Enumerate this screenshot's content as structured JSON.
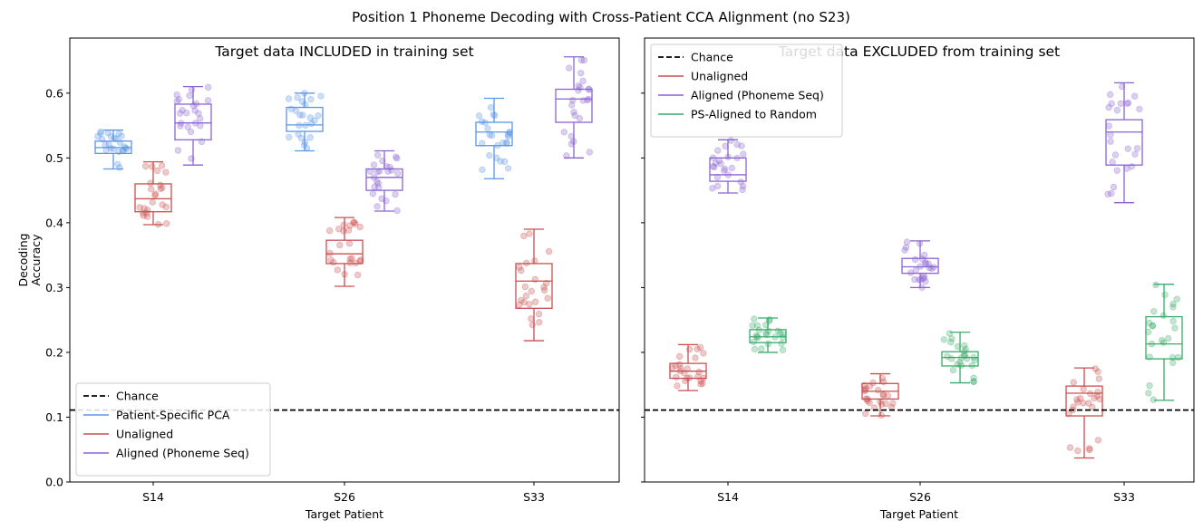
{
  "suptitle": "Position 1 Phoneme Decoding with Cross-Patient CCA Alignment (no S23)",
  "colors": {
    "chance": "#000000",
    "patient_specific_pca": "#5b95e6",
    "unaligned": "#c94f4f",
    "aligned_phoneme_seq": "#8a63d2",
    "ps_aligned_random": "#3aaa6a"
  },
  "chart_data": [
    {
      "type": "box",
      "title": "Target data INCLUDED in training set",
      "xlabel": "Target Patient",
      "ylabel": "Decoding\nAccuracy",
      "categories": [
        "S14",
        "S26",
        "S33"
      ],
      "ylim": [
        0.0,
        0.685
      ],
      "yticks": [
        "0.0",
        "0.1",
        "0.2",
        "0.3",
        "0.4",
        "0.5",
        "0.6"
      ],
      "chance": 0.111,
      "legend_position": "lower-left",
      "legend": [
        "Chance",
        "Patient-Specific PCA",
        "Unaligned",
        "Aligned (Phoneme Seq)"
      ],
      "series": [
        {
          "name": "Patient-Specific PCA",
          "color_key": "patient_specific_pca",
          "boxes": [
            {
              "category": "S14",
              "min": 0.483,
              "q1": 0.507,
              "median": 0.516,
              "q3": 0.526,
              "max": 0.543
            },
            {
              "category": "S26",
              "min": 0.511,
              "q1": 0.541,
              "median": 0.551,
              "q3": 0.578,
              "max": 0.6
            },
            {
              "category": "S33",
              "min": 0.468,
              "q1": 0.519,
              "median": 0.54,
              "q3": 0.555,
              "max": 0.592
            }
          ]
        },
        {
          "name": "Unaligned",
          "color_key": "unaligned",
          "boxes": [
            {
              "category": "S14",
              "min": 0.397,
              "q1": 0.417,
              "median": 0.437,
              "q3": 0.46,
              "max": 0.494
            },
            {
              "category": "S26",
              "min": 0.302,
              "q1": 0.337,
              "median": 0.352,
              "q3": 0.373,
              "max": 0.408
            },
            {
              "category": "S33",
              "min": 0.218,
              "q1": 0.268,
              "median": 0.31,
              "q3": 0.337,
              "max": 0.39
            }
          ]
        },
        {
          "name": "Aligned (Phoneme Seq)",
          "color_key": "aligned_phoneme_seq",
          "boxes": [
            {
              "category": "S14",
              "min": 0.489,
              "q1": 0.528,
              "median": 0.554,
              "q3": 0.583,
              "max": 0.61
            },
            {
              "category": "S26",
              "min": 0.418,
              "q1": 0.45,
              "median": 0.47,
              "q3": 0.483,
              "max": 0.511
            },
            {
              "category": "S33",
              "min": 0.5,
              "q1": 0.555,
              "median": 0.591,
              "q3": 0.606,
              "max": 0.656
            }
          ]
        }
      ]
    },
    {
      "type": "box",
      "title": "Target data EXCLUDED from training set",
      "xlabel": "Target Patient",
      "categories": [
        "S14",
        "S26",
        "S33"
      ],
      "ylim": [
        0.0,
        0.685
      ],
      "chance": 0.111,
      "legend_position": "upper-left",
      "legend": [
        "Chance",
        "Unaligned",
        "Aligned (Phoneme Seq)",
        "PS-Aligned to Random"
      ],
      "series": [
        {
          "name": "Unaligned",
          "color_key": "unaligned",
          "boxes": [
            {
              "category": "S14",
              "min": 0.141,
              "q1": 0.16,
              "median": 0.171,
              "q3": 0.183,
              "max": 0.212
            },
            {
              "category": "S26",
              "min": 0.102,
              "q1": 0.128,
              "median": 0.14,
              "q3": 0.152,
              "max": 0.167
            },
            {
              "category": "S33",
              "min": 0.037,
              "q1": 0.102,
              "median": 0.137,
              "q3": 0.148,
              "max": 0.176
            }
          ]
        },
        {
          "name": "Aligned (Phoneme Seq)",
          "color_key": "aligned_phoneme_seq",
          "boxes": [
            {
              "category": "S14",
              "min": 0.446,
              "q1": 0.464,
              "median": 0.474,
              "q3": 0.5,
              "max": 0.528
            },
            {
              "category": "S26",
              "min": 0.3,
              "q1": 0.322,
              "median": 0.332,
              "q3": 0.345,
              "max": 0.372
            },
            {
              "category": "S33",
              "min": 0.431,
              "q1": 0.489,
              "median": 0.54,
              "q3": 0.559,
              "max": 0.616
            }
          ]
        },
        {
          "name": "PS-Aligned to Random",
          "color_key": "ps_aligned_random",
          "boxes": [
            {
              "category": "S14",
              "min": 0.2,
              "q1": 0.215,
              "median": 0.224,
              "q3": 0.235,
              "max": 0.253
            },
            {
              "category": "S26",
              "min": 0.153,
              "q1": 0.179,
              "median": 0.192,
              "q3": 0.201,
              "max": 0.231
            },
            {
              "category": "S33",
              "min": 0.126,
              "q1": 0.19,
              "median": 0.213,
              "q3": 0.255,
              "max": 0.305
            }
          ]
        }
      ]
    }
  ]
}
